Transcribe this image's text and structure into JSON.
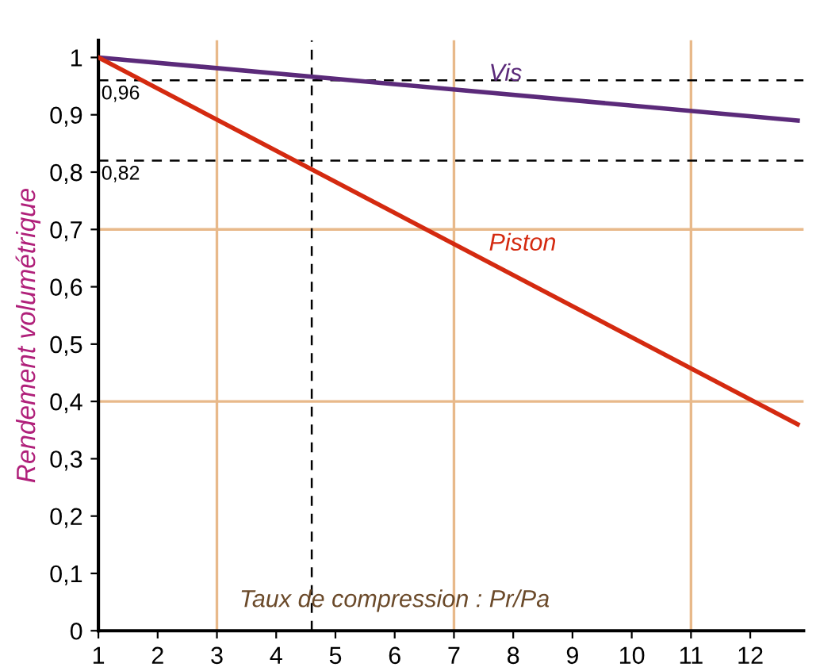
{
  "chart_data": {
    "type": "line",
    "xlabel": "Taux de compression : Pr/Pa",
    "ylabel": "Rendement volumétrique",
    "x": [
      1,
      12.8
    ],
    "series": [
      {
        "name": "Vis",
        "color": "#5b2a7a",
        "values": [
          1,
          0.89
        ]
      },
      {
        "name": "Piston",
        "color": "#d42a10",
        "values": [
          1,
          0.36
        ]
      }
    ],
    "xlim": [
      1,
      12.9
    ],
    "ylim": [
      0,
      1.03
    ],
    "xticks": [
      1,
      2,
      3,
      4,
      5,
      6,
      7,
      8,
      9,
      10,
      11,
      12
    ],
    "yticks": [
      0,
      {
        "value": 0.1,
        "label": "0,1"
      },
      {
        "value": 0.2,
        "label": "0,2"
      },
      {
        "value": 0.3,
        "label": "0,3"
      },
      {
        "value": 0.4,
        "label": "0,4"
      },
      {
        "value": 0.5,
        "label": "0,5"
      },
      {
        "value": 0.6,
        "label": "0,6"
      },
      {
        "value": 0.7,
        "label": "0,7"
      },
      {
        "value": 0.8,
        "label": "0,8"
      },
      {
        "value": 0.9,
        "label": "0,9"
      },
      1
    ],
    "grid": false,
    "legend": false,
    "marker": "none",
    "line_style": "solid",
    "ref_lines": [
      {
        "axis": "x",
        "value": 3,
        "color": "#e8b98a",
        "line_style": "solid"
      },
      {
        "axis": "x",
        "value": 7,
        "color": "#e8b98a",
        "line_style": "solid"
      },
      {
        "axis": "x",
        "value": 11,
        "color": "#e8b98a",
        "line_style": "solid"
      },
      {
        "axis": "y",
        "value": 0.4,
        "color": "#e8b98a",
        "line_style": "solid"
      },
      {
        "axis": "y",
        "value": 0.7,
        "color": "#e8b98a",
        "line_style": "solid"
      },
      {
        "axis": "y",
        "value": 0.96,
        "label": "0,96",
        "color": "#000000",
        "line_style": "dashed"
      },
      {
        "axis": "y",
        "value": 0.82,
        "label": "0,82",
        "color": "#000000",
        "line_style": "dashed"
      },
      {
        "axis": "x",
        "value": 4.6,
        "color": "#000000",
        "line_style": "dashed"
      }
    ]
  }
}
